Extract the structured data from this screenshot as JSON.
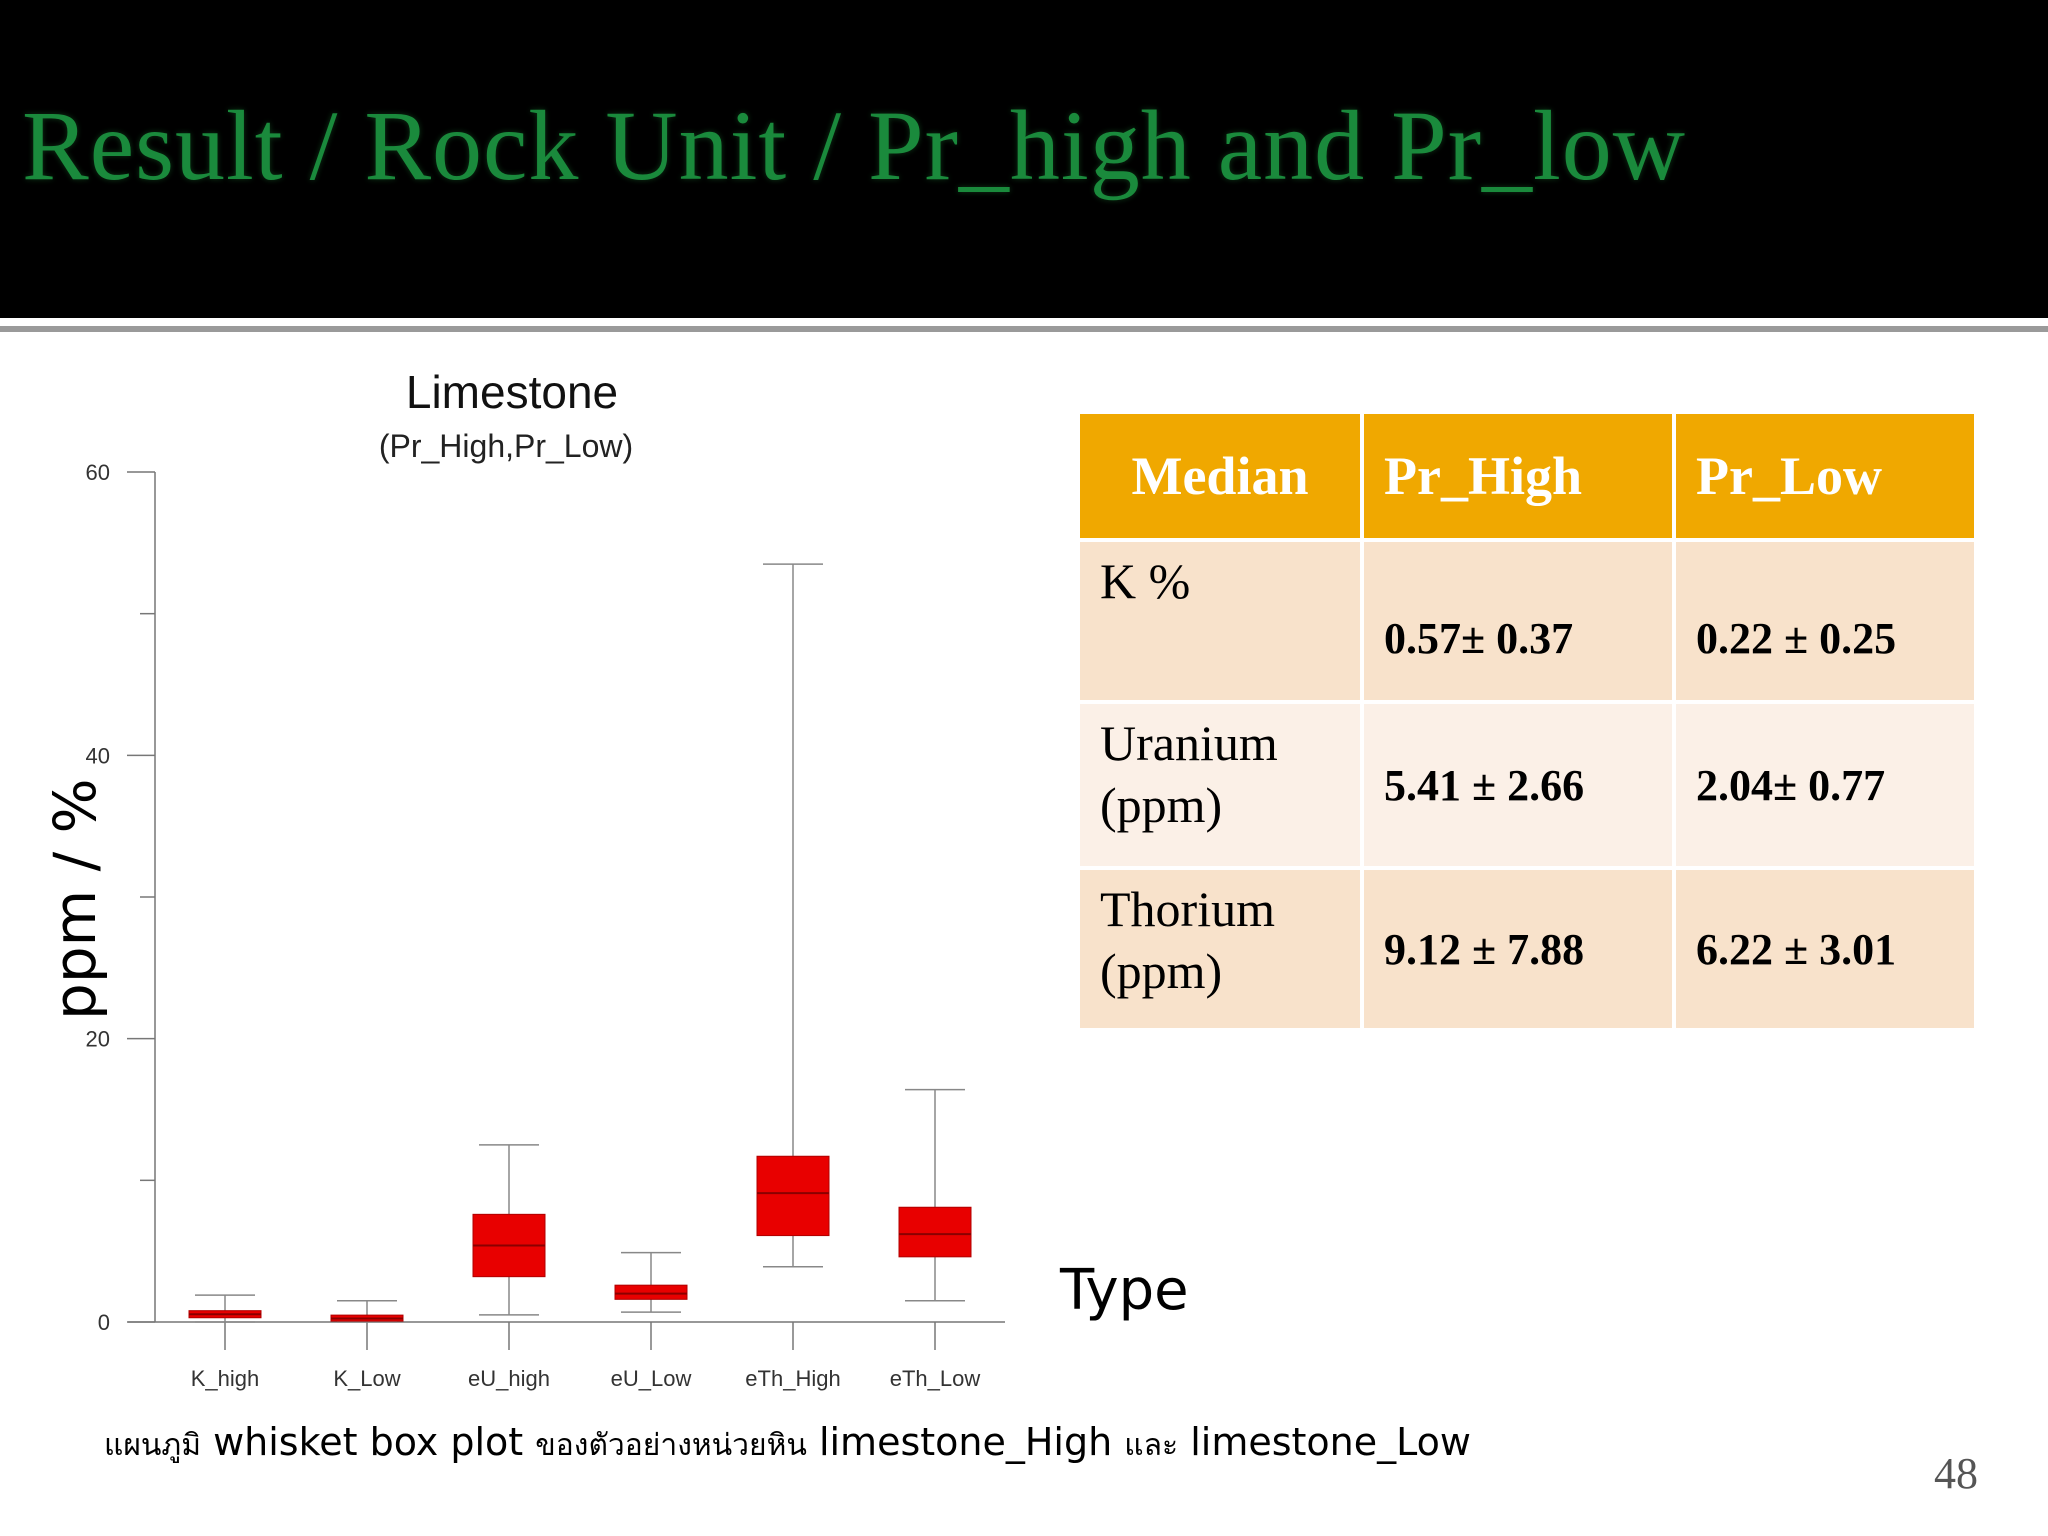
{
  "slide": {
    "title": "Result / Rock Unit / Pr_high and Pr_low",
    "page_number": "48"
  },
  "caption": {
    "part1": "แผนภูมิ",
    "part2": " whisket box plot ",
    "part3": "ของตัวอย่างหน่วยหิน",
    "part4": " limestone_High ",
    "part5": "และ",
    "part6": " limestone_Low"
  },
  "chart_data": {
    "type": "box",
    "title": "Limestone",
    "subtitle": "(Pr_High,Pr_Low)",
    "xlabel": "Type",
    "ylabel": "ppm / %",
    "ylim": [
      0,
      60
    ],
    "yticks": [
      0,
      20,
      40,
      60
    ],
    "categories": [
      "K_high",
      "K_Low",
      "eU_high",
      "eU_Low",
      "eTh_High",
      "eTh_Low"
    ],
    "boxes": [
      {
        "category": "K_high",
        "min": 0.0,
        "q1": 0.3,
        "median": 0.55,
        "q3": 0.8,
        "max": 1.9
      },
      {
        "category": "K_Low",
        "min": 0.0,
        "q1": 0.1,
        "median": 0.25,
        "q3": 0.45,
        "max": 1.5
      },
      {
        "category": "eU_high",
        "min": 0.5,
        "q1": 3.2,
        "median": 5.4,
        "q3": 7.6,
        "max": 12.5
      },
      {
        "category": "eU_Low",
        "min": 0.7,
        "q1": 1.6,
        "median": 2.0,
        "q3": 2.6,
        "max": 4.9
      },
      {
        "category": "eTh_High",
        "min": 3.9,
        "q1": 6.1,
        "median": 9.1,
        "q3": 11.7,
        "max": 53.5
      },
      {
        "category": "eTh_Low",
        "min": 1.5,
        "q1": 4.6,
        "median": 6.2,
        "q3": 8.1,
        "max": 16.4
      }
    ],
    "box_color": "#e80000",
    "grid": false
  },
  "table": {
    "headers": [
      "Median",
      "Pr_High",
      "Pr_Low"
    ],
    "rows": [
      {
        "label_line1": "K %",
        "label_line2": "",
        "high": "0.57± 0.37",
        "low": "0.22 ± 0.25"
      },
      {
        "label_line1": "Uranium",
        "label_line2": "(ppm)",
        "high": "5.41 ± 2.66",
        "low": "2.04± 0.77"
      },
      {
        "label_line1": "Thorium",
        "label_line2": "(ppm)",
        "high": "9.12 ± 7.88",
        "low": "6.22 ± 3.01"
      }
    ],
    "header_color": "#f0a800"
  }
}
